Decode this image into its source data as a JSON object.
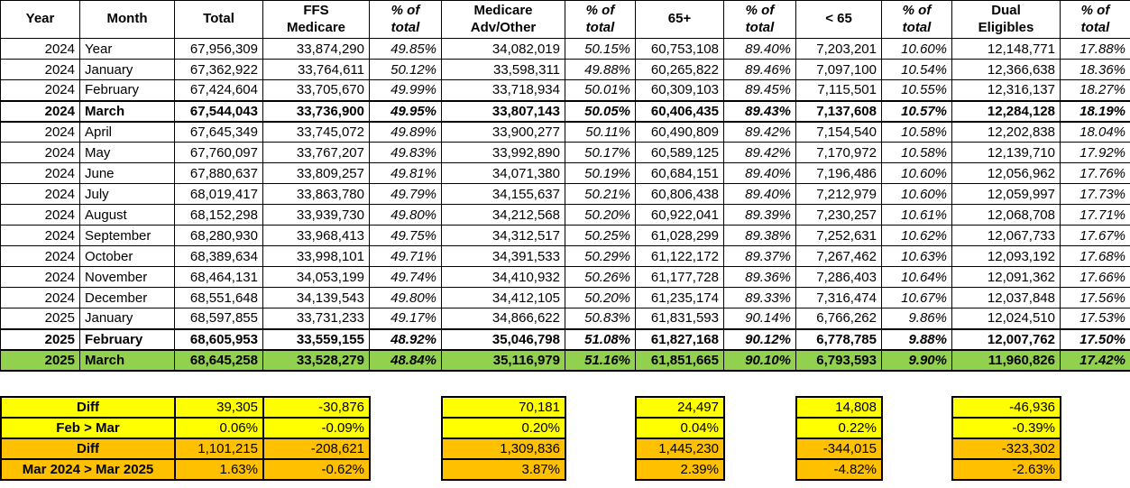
{
  "colors": {
    "highlight_green": "#92D050",
    "summary_yellow": "#FFFF00",
    "summary_orange": "#FFC000",
    "border": "#000000"
  },
  "chart_data": {
    "type": "table",
    "title": "",
    "columns": [
      "Year",
      "Month",
      "Total",
      "FFS\nMedicare",
      "% of\ntotal",
      "Medicare\nAdv/Other",
      "% of\ntotal",
      "65+",
      "% of\ntotal",
      "< 65",
      "% of\ntotal",
      "Dual\nEligibles",
      "% of\ntotal"
    ],
    "rows": [
      {
        "year": "2024",
        "month": "Year",
        "values": [
          "67,956,309",
          "33,874,290",
          "49.85%",
          "34,082,019",
          "50.15%",
          "60,753,108",
          "89.40%",
          "7,203,201",
          "10.60%",
          "12,148,771",
          "17.88%"
        ]
      },
      {
        "year": "2024",
        "month": "January",
        "values": [
          "67,362,922",
          "33,764,611",
          "50.12%",
          "33,598,311",
          "49.88%",
          "60,265,822",
          "89.46%",
          "7,097,100",
          "10.54%",
          "12,366,638",
          "18.36%"
        ]
      },
      {
        "year": "2024",
        "month": "February",
        "values": [
          "67,424,604",
          "33,705,670",
          "49.99%",
          "33,718,934",
          "50.01%",
          "60,309,103",
          "89.45%",
          "7,115,501",
          "10.55%",
          "12,316,137",
          "18.27%"
        ]
      },
      {
        "year": "2024",
        "month": "March",
        "bold": true,
        "values": [
          "67,544,043",
          "33,736,900",
          "49.95%",
          "33,807,143",
          "50.05%",
          "60,406,435",
          "89.43%",
          "7,137,608",
          "10.57%",
          "12,284,128",
          "18.19%"
        ]
      },
      {
        "year": "2024",
        "month": "April",
        "values": [
          "67,645,349",
          "33,745,072",
          "49.89%",
          "33,900,277",
          "50.11%",
          "60,490,809",
          "89.42%",
          "7,154,540",
          "10.58%",
          "12,202,838",
          "18.04%"
        ]
      },
      {
        "year": "2024",
        "month": "May",
        "values": [
          "67,760,097",
          "33,767,207",
          "49.83%",
          "33,992,890",
          "50.17%",
          "60,589,125",
          "89.42%",
          "7,170,972",
          "10.58%",
          "12,139,710",
          "17.92%"
        ]
      },
      {
        "year": "2024",
        "month": "June",
        "values": [
          "67,880,637",
          "33,809,257",
          "49.81%",
          "34,071,380",
          "50.19%",
          "60,684,151",
          "89.40%",
          "7,196,486",
          "10.60%",
          "12,056,962",
          "17.76%"
        ]
      },
      {
        "year": "2024",
        "month": "July",
        "values": [
          "68,019,417",
          "33,863,780",
          "49.79%",
          "34,155,637",
          "50.21%",
          "60,806,438",
          "89.40%",
          "7,212,979",
          "10.60%",
          "12,059,997",
          "17.73%"
        ]
      },
      {
        "year": "2024",
        "month": "August",
        "values": [
          "68,152,298",
          "33,939,730",
          "49.80%",
          "34,212,568",
          "50.20%",
          "60,922,041",
          "89.39%",
          "7,230,257",
          "10.61%",
          "12,068,708",
          "17.71%"
        ]
      },
      {
        "year": "2024",
        "month": "September",
        "values": [
          "68,280,930",
          "33,968,413",
          "49.75%",
          "34,312,517",
          "50.25%",
          "61,028,299",
          "89.38%",
          "7,252,631",
          "10.62%",
          "12,067,733",
          "17.67%"
        ]
      },
      {
        "year": "2024",
        "month": "October",
        "values": [
          "68,389,634",
          "33,998,101",
          "49.71%",
          "34,391,533",
          "50.29%",
          "61,122,172",
          "89.37%",
          "7,267,462",
          "10.63%",
          "12,093,192",
          "17.68%"
        ]
      },
      {
        "year": "2024",
        "month": "November",
        "values": [
          "68,464,131",
          "34,053,199",
          "49.74%",
          "34,410,932",
          "50.26%",
          "61,177,728",
          "89.36%",
          "7,286,403",
          "10.64%",
          "12,091,362",
          "17.66%"
        ]
      },
      {
        "year": "2024",
        "month": "December",
        "values": [
          "68,551,648",
          "34,139,543",
          "49.80%",
          "34,412,105",
          "50.20%",
          "61,235,174",
          "89.33%",
          "7,316,474",
          "10.67%",
          "12,037,848",
          "17.56%"
        ]
      },
      {
        "year": "2025",
        "month": "January",
        "values": [
          "68,597,855",
          "33,731,233",
          "49.17%",
          "34,866,622",
          "50.83%",
          "61,831,593",
          "90.14%",
          "6,766,262",
          "9.86%",
          "12,024,510",
          "17.53%"
        ]
      },
      {
        "year": "2025",
        "month": "February",
        "bold": true,
        "values": [
          "68,605,953",
          "33,559,155",
          "48.92%",
          "35,046,798",
          "51.08%",
          "61,827,168",
          "90.12%",
          "6,778,785",
          "9.88%",
          "12,007,762",
          "17.50%"
        ]
      },
      {
        "year": "2025",
        "month": "March",
        "bold": true,
        "highlight": true,
        "values": [
          "68,645,258",
          "33,528,279",
          "48.84%",
          "35,116,979",
          "51.16%",
          "61,851,665",
          "90.10%",
          "6,793,593",
          "9.90%",
          "11,960,826",
          "17.42%"
        ]
      }
    ],
    "summary_rows": [
      {
        "label": "Diff",
        "fill": "yellow",
        "values": [
          "39,305",
          "-30,876",
          "70,181",
          "24,497",
          "14,808",
          "-46,936"
        ]
      },
      {
        "label": "Feb > Mar",
        "fill": "yellow",
        "values": [
          "0.06%",
          "-0.09%",
          "0.20%",
          "0.04%",
          "0.22%",
          "-0.39%"
        ]
      },
      {
        "label": "Diff",
        "fill": "orange",
        "values": [
          "1,101,215",
          "-208,621",
          "1,309,836",
          "1,445,230",
          "-344,015",
          "-323,302"
        ]
      },
      {
        "label": "Mar 2024 > Mar 2025",
        "fill": "orange",
        "values": [
          "1.63%",
          "-0.62%",
          "3.87%",
          "2.39%",
          "-4.82%",
          "-2.63%"
        ]
      }
    ]
  }
}
